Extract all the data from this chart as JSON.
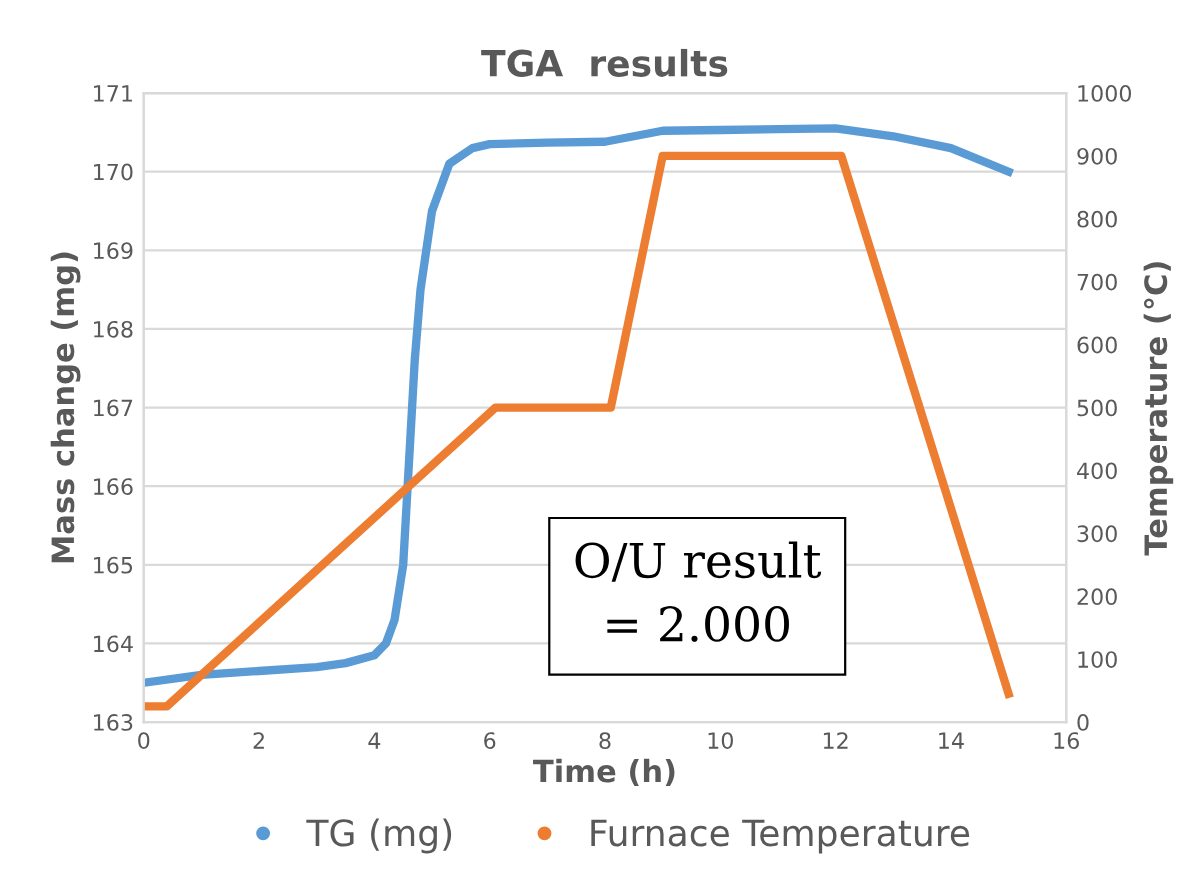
{
  "chart_data": {
    "type": "line",
    "title": "TGA  results",
    "xlabel": "Time (h)",
    "ylabel": "Mass change (mg)",
    "y2label": "Temperature (°C)",
    "annotations": [
      "O/U result\n= 2.000"
    ],
    "series": [
      {
        "name": "TG (mg)",
        "color": "#5b9bd5",
        "x": [
          0,
          1,
          2,
          3,
          3.5,
          4.0,
          4.2,
          4.35,
          4.5,
          4.6,
          4.7,
          4.8,
          5.0,
          5.3,
          5.7,
          6,
          7,
          8,
          8.5,
          9,
          10,
          11,
          12,
          13,
          14,
          15
        ],
        "values": [
          163.5,
          163.6,
          163.65,
          163.7,
          163.75,
          163.85,
          164.0,
          164.3,
          165.0,
          166.3,
          167.6,
          168.5,
          169.5,
          170.1,
          170.3,
          170.35,
          170.37,
          170.38,
          170.45,
          170.52,
          170.53,
          170.54,
          170.55,
          170.45,
          170.3,
          170.0
        ]
      },
      {
        "name": "Furnace Temperature",
        "color": "#ed7d31",
        "axis": "y2",
        "x": [
          0,
          0.4,
          6.1,
          8.1,
          9.0,
          12.1,
          15.0
        ],
        "values": [
          25,
          25,
          500,
          500,
          900,
          900,
          45
        ]
      }
    ],
    "xlim": [
      0,
      16
    ],
    "xticks": [
      0,
      2,
      4,
      6,
      8,
      10,
      12,
      14,
      16
    ],
    "ylim": [
      163,
      171
    ],
    "yticks": [
      163,
      164,
      165,
      166,
      167,
      168,
      169,
      170,
      171
    ],
    "y2lim": [
      0,
      1000
    ],
    "y2ticks": [
      0,
      100,
      200,
      300,
      400,
      500,
      600,
      700,
      800,
      900,
      1000
    ],
    "grid": "y",
    "legend": "bottom"
  }
}
